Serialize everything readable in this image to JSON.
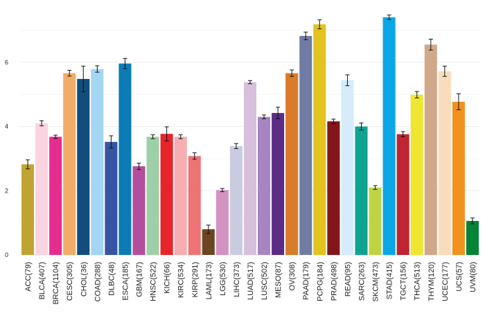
{
  "chart_data": {
    "type": "bar",
    "title": "",
    "xlabel": "",
    "ylabel": "",
    "ylim": [
      0,
      7.55
    ],
    "yticks": [
      0,
      2,
      4,
      6
    ],
    "categories": [
      "ACC(79)",
      "BLCA(407)",
      "BRCA(1104)",
      "CESC(305)",
      "CHOL(36)",
      "COAD(288)",
      "DLBC(48)",
      "ESCA(185)",
      "GBM(167)",
      "HNSC(522)",
      "KICH(66)",
      "KIRC(534)",
      "KIRP(291)",
      "LAML(173)",
      "LGG(530)",
      "LIHC(373)",
      "LUAD(517)",
      "LUSC(502)",
      "MESO(87)",
      "OV(308)",
      "PAAD(179)",
      "PCPG(184)",
      "PRAD(498)",
      "READ(95)",
      "SARC(263)",
      "SKCM(473)",
      "STAD(415)",
      "TGCT(156)",
      "THCA(513)",
      "THYM(120)",
      "UCEC(177)",
      "UCS(57)",
      "UVM(80)"
    ],
    "values": [
      2.82,
      4.1,
      3.68,
      5.66,
      5.48,
      5.79,
      3.52,
      5.96,
      2.76,
      3.68,
      3.77,
      3.68,
      3.08,
      0.8,
      2.02,
      3.39,
      5.38,
      4.3,
      4.42,
      5.66,
      6.82,
      7.18,
      4.16,
      5.44,
      4.0,
      2.1,
      7.4,
      3.76,
      4.99,
      6.55,
      5.72,
      4.77,
      1.06
    ],
    "errors": [
      0.14,
      0.08,
      0.05,
      0.09,
      0.4,
      0.1,
      0.19,
      0.16,
      0.1,
      0.06,
      0.22,
      0.06,
      0.1,
      0.13,
      0.05,
      0.08,
      0.05,
      0.06,
      0.18,
      0.1,
      0.12,
      0.14,
      0.07,
      0.17,
      0.11,
      0.06,
      0.07,
      0.08,
      0.1,
      0.17,
      0.16,
      0.25,
      0.09
    ],
    "colors": [
      "#c0a433",
      "#fad4e0",
      "#e52d8f",
      "#f2ac68",
      "#124d7c",
      "#a3d6f2",
      "#3654a0",
      "#0b7cb5",
      "#b34e9c",
      "#9dd0a7",
      "#e7242b",
      "#f6aeb1",
      "#ee7375",
      "#6c4521",
      "#d492c2",
      "#c9cce0",
      "#d6c0dc",
      "#a685c0",
      "#5b2c86",
      "#d97b28",
      "#717ca4",
      "#e3c31e",
      "#83161a",
      "#d5ecfa",
      "#0fa392",
      "#bfd444",
      "#0aa6e5",
      "#bf2533",
      "#f0e531",
      "#cfa98a",
      "#f9dcbb",
      "#f3911e",
      "#048437"
    ]
  }
}
